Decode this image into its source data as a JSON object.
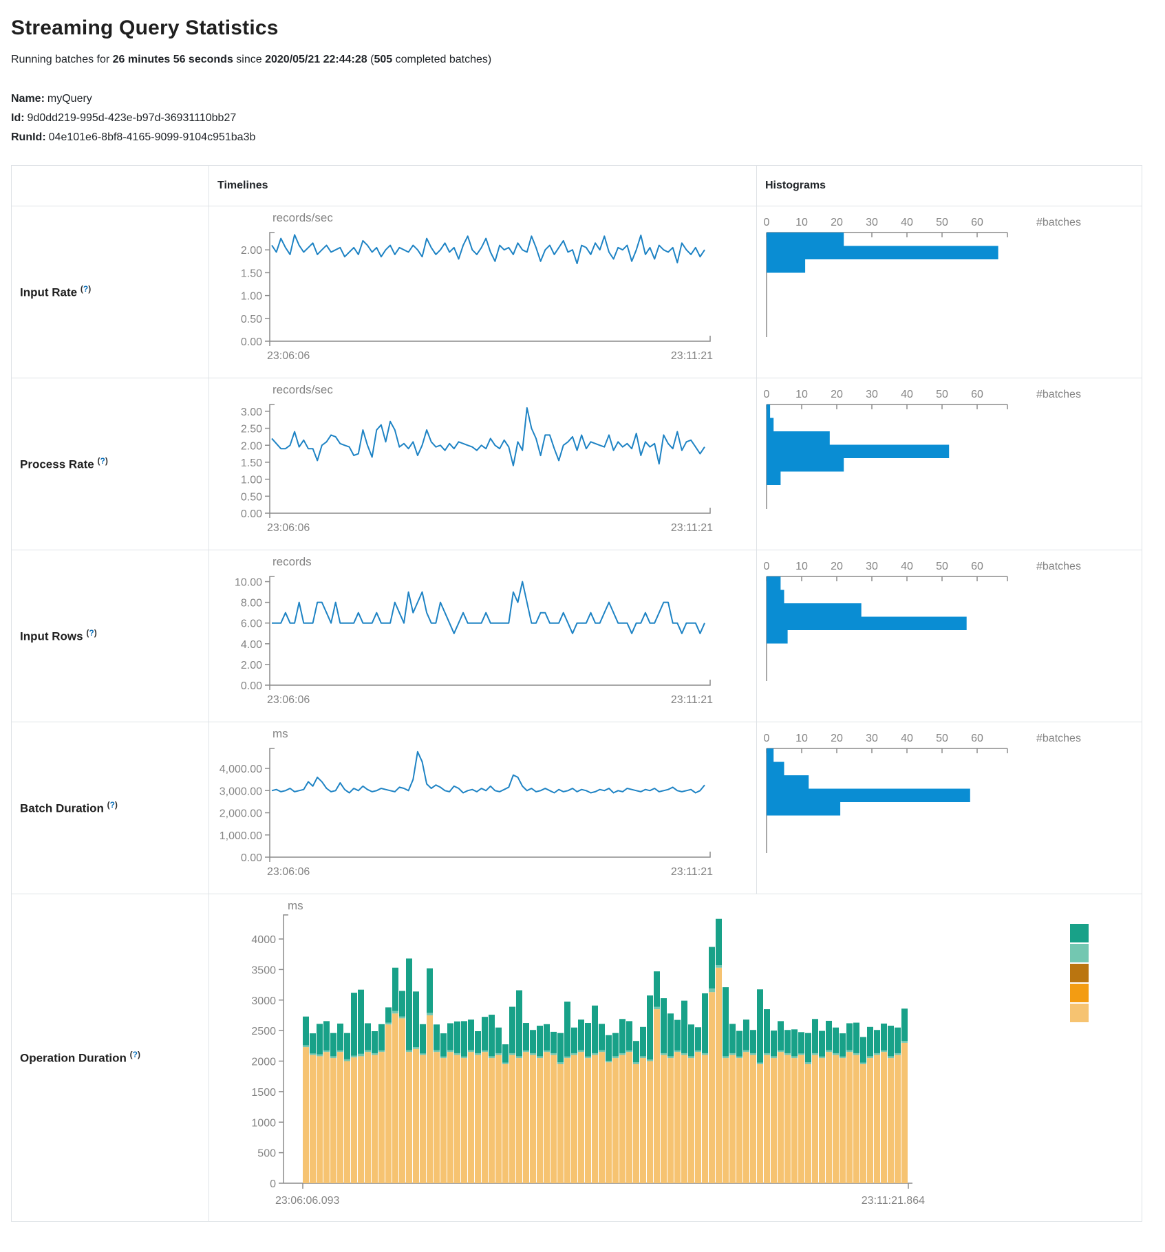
{
  "page": {
    "title": "Streaming Query Statistics",
    "running_prefix": "Running batches for ",
    "duration": "26 minutes 56 seconds",
    "since_word": " since ",
    "start_time": "2020/05/21 22:44:28",
    "paren_open": " (",
    "completed_batches": "505",
    "batches_suffix": " completed batches)",
    "name_label": "Name:",
    "name_value": "myQuery",
    "id_label": "Id:",
    "id_value": "9d0dd219-995d-423e-b97d-36931110bb27",
    "runid_label": "RunId:",
    "runid_value": "04e101e6-8bf8-4165-9099-9104c951ba3b"
  },
  "table": {
    "timelines_header": "Timelines",
    "histograms_header": "Histograms"
  },
  "colors": {
    "timeline_line": "#1e83c4",
    "histogram_bar": "#0a8dd3",
    "axis_gray": "#8c8c8c",
    "tick_text": "#848484"
  },
  "chart_data": [
    {
      "label": "Input Rate",
      "help_open": "(",
      "help_mark": "?",
      "help_close": ")",
      "timeline": {
        "type": "line",
        "unit": "records/sec",
        "ymax": 2.38,
        "yticks": [
          [
            "2.00",
            2
          ],
          [
            "1.50",
            1.5
          ],
          [
            "1.00",
            1
          ],
          [
            "0.50",
            0.5
          ],
          [
            "0.00",
            0
          ]
        ],
        "x_start": "23:06:06",
        "x_end": "23:11:21",
        "values": [
          2.1,
          1.95,
          2.25,
          2.05,
          1.9,
          2.33,
          2.1,
          1.95,
          2.05,
          2.15,
          1.9,
          2.0,
          2.1,
          1.95,
          2.0,
          2.05,
          1.85,
          1.95,
          2.05,
          1.9,
          2.2,
          2.1,
          1.95,
          2.05,
          1.85,
          2.0,
          2.1,
          1.9,
          2.05,
          2.0,
          1.95,
          2.1,
          2.0,
          1.85,
          2.25,
          2.05,
          1.9,
          2.0,
          2.15,
          1.95,
          2.05,
          1.8,
          2.1,
          2.3,
          2.0,
          1.9,
          2.05,
          2.25,
          1.95,
          1.75,
          2.1,
          2.0,
          2.05,
          1.9,
          2.15,
          2.0,
          1.95,
          2.3,
          2.05,
          1.75,
          2.0,
          2.1,
          1.9,
          2.05,
          2.2,
          1.95,
          2.0,
          1.7,
          2.1,
          2.05,
          1.9,
          2.15,
          2.0,
          2.3,
          1.95,
          1.8,
          2.05,
          2.0,
          2.1,
          1.75,
          2.0,
          2.32,
          1.9,
          2.05,
          1.8,
          2.1,
          2.0,
          1.95,
          2.05,
          1.72,
          2.15,
          2.0,
          1.9,
          2.05,
          1.85,
          2.0
        ]
      },
      "histogram": {
        "type": "bar",
        "unit": "#batches",
        "xticks": [
          0,
          10,
          20,
          30,
          40,
          50,
          60
        ],
        "values": [
          22,
          66,
          11
        ]
      }
    },
    {
      "label": "Process Rate",
      "help_open": "(",
      "help_mark": "?",
      "help_close": ")",
      "timeline": {
        "type": "line",
        "unit": "records/sec",
        "ymax": 3.2,
        "yticks": [
          [
            "3.00",
            3
          ],
          [
            "2.50",
            2.5
          ],
          [
            "2.00",
            2
          ],
          [
            "1.50",
            1.5
          ],
          [
            "1.00",
            1
          ],
          [
            "0.50",
            0.5
          ],
          [
            "0.00",
            0
          ]
        ],
        "x_start": "23:06:06",
        "x_end": "23:11:21",
        "values": [
          2.2,
          2.05,
          1.9,
          1.9,
          2.0,
          2.4,
          1.95,
          2.15,
          1.9,
          1.9,
          1.55,
          2.0,
          2.1,
          2.3,
          2.25,
          2.05,
          2.0,
          1.95,
          1.7,
          1.75,
          2.45,
          2.0,
          1.65,
          2.45,
          2.6,
          2.1,
          2.7,
          2.45,
          1.95,
          2.05,
          1.9,
          2.1,
          1.7,
          2.0,
          2.45,
          2.1,
          1.95,
          2.0,
          1.85,
          2.05,
          1.9,
          2.1,
          2.05,
          2.0,
          1.95,
          1.85,
          2.0,
          1.9,
          2.2,
          2.0,
          1.9,
          2.15,
          1.95,
          1.4,
          2.1,
          1.85,
          3.1,
          2.5,
          2.2,
          1.7,
          2.3,
          2.3,
          1.9,
          1.55,
          2.0,
          2.1,
          2.25,
          1.85,
          2.3,
          1.9,
          2.1,
          2.05,
          2.0,
          1.95,
          2.3,
          1.85,
          2.1,
          1.95,
          2.05,
          1.9,
          2.35,
          1.7,
          2.1,
          1.95,
          2.05,
          1.45,
          2.3,
          2.05,
          1.9,
          2.4,
          1.85,
          2.1,
          2.15,
          1.95,
          1.75,
          1.95
        ]
      },
      "histogram": {
        "type": "bar",
        "unit": "#batches",
        "xticks": [
          0,
          10,
          20,
          30,
          40,
          50,
          60
        ],
        "values": [
          1,
          2,
          18,
          52,
          22,
          4
        ]
      }
    },
    {
      "label": "Input Rows",
      "help_open": "(",
      "help_mark": "?",
      "help_close": ")",
      "timeline": {
        "type": "line",
        "unit": "records",
        "ymax": 10.5,
        "yticks": [
          [
            "10.00",
            10
          ],
          [
            "8.00",
            8
          ],
          [
            "6.00",
            6
          ],
          [
            "4.00",
            4
          ],
          [
            "2.00",
            2
          ],
          [
            "0.00",
            0
          ]
        ],
        "x_start": "23:06:06",
        "x_end": "23:11:21",
        "values": [
          6,
          6,
          6,
          7,
          6,
          6,
          8,
          6,
          6,
          6,
          8,
          8,
          7,
          6,
          8,
          6,
          6,
          6,
          6,
          7,
          6,
          6,
          6,
          7,
          6,
          6,
          6,
          8,
          7,
          6,
          9,
          7,
          8,
          9,
          7,
          6,
          6,
          8,
          7,
          6,
          5,
          6,
          7,
          6,
          6,
          6,
          6,
          7,
          6,
          6,
          6,
          6,
          6,
          9,
          8,
          10,
          8,
          6,
          6,
          7,
          7,
          6,
          6,
          6,
          7,
          6,
          5,
          6,
          6,
          6,
          7,
          6,
          6,
          7,
          8,
          7,
          6,
          6,
          6,
          5,
          6,
          6,
          7,
          6,
          6,
          7,
          8,
          8,
          6,
          6,
          5,
          6,
          6,
          6,
          5,
          6
        ]
      },
      "histogram": {
        "type": "bar",
        "unit": "#batches",
        "xticks": [
          0,
          10,
          20,
          30,
          40,
          50,
          60
        ],
        "values": [
          4,
          5,
          27,
          57,
          6
        ]
      }
    },
    {
      "label": "Batch Duration",
      "help_open": "(",
      "help_mark": "?",
      "help_close": ")",
      "timeline": {
        "type": "line",
        "unit": "ms",
        "ymax": 4900,
        "yticks": [
          [
            "4,000.00",
            4000
          ],
          [
            "3,000.00",
            3000
          ],
          [
            "2,000.00",
            2000
          ],
          [
            "1,000.00",
            1000
          ],
          [
            "0.00",
            0
          ]
        ],
        "x_start": "23:06:06",
        "x_end": "23:11:21",
        "values": [
          3000,
          3050,
          2950,
          3000,
          3100,
          2950,
          3000,
          3050,
          3400,
          3200,
          3600,
          3400,
          3100,
          2950,
          3000,
          3350,
          3050,
          2900,
          3100,
          3000,
          3200,
          3050,
          2950,
          3000,
          3100,
          3050,
          3000,
          2950,
          3150,
          3100,
          3000,
          3500,
          4750,
          4300,
          3300,
          3100,
          3250,
          3150,
          3000,
          2950,
          3200,
          3100,
          2900,
          3000,
          3050,
          2950,
          3100,
          3000,
          3200,
          3000,
          2950,
          3050,
          3150,
          3700,
          3600,
          3200,
          3000,
          3100,
          2950,
          3000,
          3100,
          3000,
          2900,
          3050,
          2950,
          3000,
          3100,
          2950,
          3050,
          3000,
          2900,
          2950,
          3050,
          3000,
          3100,
          2900,
          3000,
          2950,
          3100,
          3050,
          3000,
          2950,
          3050,
          3000,
          3100,
          2950,
          3000,
          3050,
          3150,
          3000,
          2950,
          3000,
          3050,
          2900,
          3000,
          3250
        ]
      },
      "histogram": {
        "type": "bar",
        "unit": "#batches",
        "xticks": [
          0,
          10,
          20,
          30,
          40,
          50,
          60
        ],
        "values": [
          2,
          5,
          12,
          58,
          21
        ]
      }
    },
    {
      "label": "Operation Duration",
      "help_open": "(",
      "help_mark": "?",
      "help_close": ")",
      "stacked": {
        "type": "bar",
        "stacked": true,
        "unit": "ms",
        "ymax": 4400,
        "yticks": [
          [
            "4000",
            4000
          ],
          [
            "3500",
            3500
          ],
          [
            "3000",
            3000
          ],
          [
            "2500",
            2500
          ],
          [
            "2000",
            2000
          ],
          [
            "1500",
            1500
          ],
          [
            "1000",
            1000
          ],
          [
            "500",
            500
          ],
          [
            "0",
            0
          ]
        ],
        "x_start": "23:06:06.093",
        "x_end": "23:11:21.864",
        "segment_colors": [
          "#f6c371",
          "#73c7b1",
          "#18a188"
        ],
        "legend_colors": [
          "#18a188",
          "#73c7b1",
          "#ba7510",
          "#f39c12",
          "#f6c371"
        ],
        "bars": [
          [
            2230,
            30,
            470
          ],
          [
            2100,
            25,
            330
          ],
          [
            2080,
            30,
            500
          ],
          [
            2150,
            25,
            480
          ],
          [
            2050,
            30,
            380
          ],
          [
            2150,
            25,
            440
          ],
          [
            2000,
            30,
            430
          ],
          [
            2060,
            30,
            1030
          ],
          [
            2080,
            40,
            1050
          ],
          [
            2150,
            30,
            440
          ],
          [
            2100,
            30,
            360
          ],
          [
            2150,
            25,
            430
          ],
          [
            2600,
            30,
            250
          ],
          [
            2780,
            40,
            710
          ],
          [
            2700,
            30,
            420
          ],
          [
            2150,
            30,
            1500
          ],
          [
            2200,
            30,
            910
          ],
          [
            2100,
            25,
            480
          ],
          [
            2750,
            40,
            730
          ],
          [
            2150,
            30,
            420
          ],
          [
            2050,
            25,
            380
          ],
          [
            2150,
            30,
            440
          ],
          [
            2100,
            30,
            520
          ],
          [
            2050,
            25,
            580
          ],
          [
            2150,
            30,
            500
          ],
          [
            2100,
            30,
            360
          ],
          [
            2150,
            25,
            550
          ],
          [
            2050,
            30,
            680
          ],
          [
            2100,
            30,
            420
          ],
          [
            1950,
            25,
            300
          ],
          [
            2100,
            30,
            760
          ],
          [
            2050,
            30,
            1080
          ],
          [
            2150,
            25,
            450
          ],
          [
            2100,
            30,
            380
          ],
          [
            2050,
            30,
            500
          ],
          [
            2150,
            25,
            430
          ],
          [
            2100,
            30,
            350
          ],
          [
            1950,
            30,
            480
          ],
          [
            2050,
            25,
            900
          ],
          [
            2100,
            30,
            420
          ],
          [
            2150,
            30,
            500
          ],
          [
            2050,
            25,
            550
          ],
          [
            2100,
            30,
            780
          ],
          [
            2150,
            30,
            430
          ],
          [
            1980,
            25,
            420
          ],
          [
            2050,
            30,
            380
          ],
          [
            2100,
            30,
            560
          ],
          [
            2150,
            25,
            480
          ],
          [
            1950,
            30,
            350
          ],
          [
            2050,
            30,
            480
          ],
          [
            2000,
            25,
            1050
          ],
          [
            2850,
            40,
            580
          ],
          [
            2100,
            30,
            900
          ],
          [
            2050,
            30,
            700
          ],
          [
            2150,
            25,
            500
          ],
          [
            2100,
            30,
            860
          ],
          [
            2050,
            30,
            520
          ],
          [
            2150,
            25,
            380
          ],
          [
            2100,
            30,
            980
          ],
          [
            3130,
            60,
            680
          ],
          [
            3530,
            40,
            760
          ],
          [
            2050,
            30,
            1130
          ],
          [
            2100,
            30,
            480
          ],
          [
            2050,
            25,
            420
          ],
          [
            2150,
            30,
            500
          ],
          [
            2100,
            30,
            380
          ],
          [
            1950,
            25,
            1200
          ],
          [
            2100,
            30,
            720
          ],
          [
            2050,
            30,
            420
          ],
          [
            2150,
            25,
            480
          ],
          [
            2100,
            30,
            380
          ],
          [
            2050,
            30,
            440
          ],
          [
            2100,
            25,
            350
          ],
          [
            1950,
            30,
            480
          ],
          [
            2100,
            30,
            560
          ],
          [
            2050,
            25,
            420
          ],
          [
            2150,
            30,
            480
          ],
          [
            2100,
            30,
            420
          ],
          [
            2050,
            25,
            380
          ],
          [
            2150,
            30,
            440
          ],
          [
            2100,
            30,
            500
          ],
          [
            1950,
            25,
            420
          ],
          [
            2050,
            30,
            480
          ],
          [
            2100,
            30,
            380
          ],
          [
            2150,
            25,
            440
          ],
          [
            2050,
            30,
            500
          ],
          [
            2100,
            30,
            420
          ],
          [
            2300,
            30,
            530
          ]
        ]
      }
    }
  ]
}
